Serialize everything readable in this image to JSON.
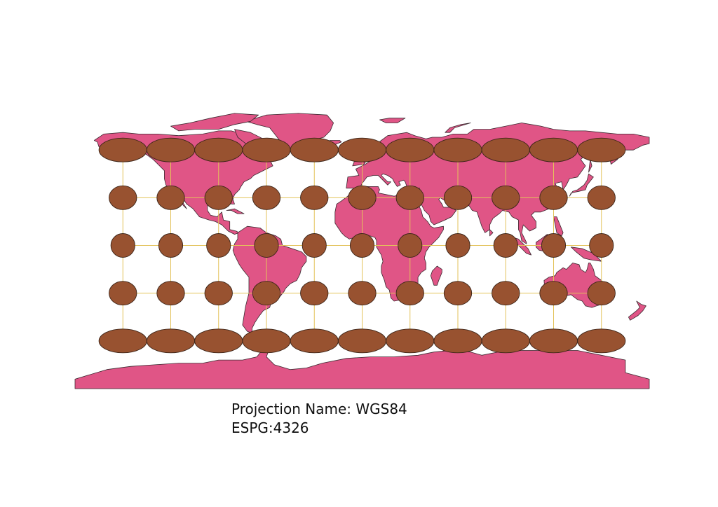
{
  "map": {
    "projection_label": "Projection Name: WGS84",
    "epsg_label": "ESPG:4326",
    "colors": {
      "land": "#e05586",
      "land_outline": "#3a2a30",
      "ellipse_fill": "#985230",
      "ellipse_outline": "#3b2418",
      "graticule": "#e3c25a",
      "background": "#ffffff"
    },
    "extent": {
      "lon": [
        -180,
        180
      ],
      "lat": [
        -90,
        90
      ]
    },
    "graticule": {
      "lons": [
        -150,
        -120,
        -90,
        -60,
        -30,
        0,
        30,
        60,
        90,
        120,
        150
      ],
      "lats": [
        60,
        30,
        0,
        -30,
        -60
      ]
    },
    "tissot_indicatrix": {
      "lons": [
        -150,
        -120,
        -90,
        -60,
        -30,
        0,
        30,
        60,
        90,
        120,
        150
      ],
      "lats": [
        60,
        30,
        0,
        -30,
        -60
      ]
    }
  }
}
